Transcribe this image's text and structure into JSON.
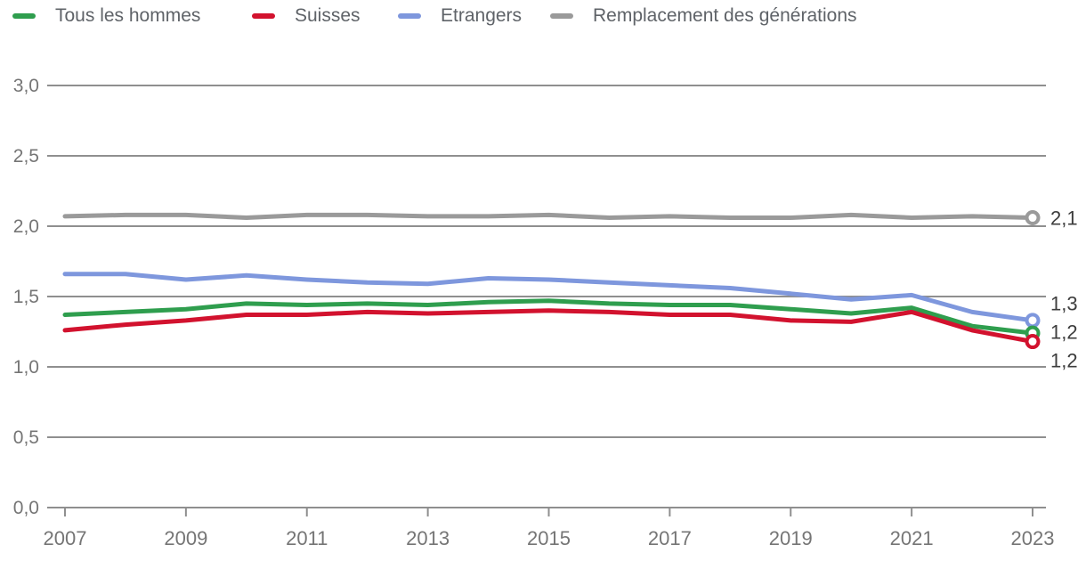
{
  "legend": {
    "items": [
      {
        "label": "Tous les hommes",
        "color": "#2f9e4e"
      },
      {
        "label": "Suisses",
        "color": "#d2122e"
      },
      {
        "label": "Etrangers",
        "color": "#7e97dd"
      },
      {
        "label": "Remplacement des générations",
        "color": "#9a9a9a"
      }
    ]
  },
  "chart_data": {
    "type": "line",
    "title": "",
    "xlabel": "",
    "ylabel": "",
    "x": [
      2007,
      2008,
      2009,
      2010,
      2011,
      2012,
      2013,
      2014,
      2015,
      2016,
      2017,
      2018,
      2019,
      2020,
      2021,
      2022,
      2023
    ],
    "x_tick_labels": [
      "2007",
      "2009",
      "2011",
      "2013",
      "2015",
      "2017",
      "2019",
      "2021",
      "2023"
    ],
    "y_ticks": [
      0.0,
      0.5,
      1.0,
      1.5,
      2.0,
      2.5,
      3.0
    ],
    "y_tick_labels": [
      "0,0",
      "0,5",
      "1,0",
      "1,5",
      "2,0",
      "2,5",
      "3,0"
    ],
    "ylim": [
      0.0,
      3.0
    ],
    "grid": true,
    "legend_position": "top",
    "end_markers": "open-circle",
    "series": [
      {
        "name": "Tous les hommes",
        "color": "#2f9e4e",
        "end_label": "1,2",
        "values": [
          1.37,
          1.39,
          1.41,
          1.45,
          1.44,
          1.45,
          1.44,
          1.46,
          1.47,
          1.45,
          1.44,
          1.44,
          1.41,
          1.38,
          1.42,
          1.29,
          1.24
        ]
      },
      {
        "name": "Suisses",
        "color": "#d2122e",
        "end_label": "1,2",
        "values": [
          1.26,
          1.3,
          1.33,
          1.37,
          1.37,
          1.39,
          1.38,
          1.39,
          1.4,
          1.39,
          1.37,
          1.37,
          1.33,
          1.32,
          1.39,
          1.26,
          1.18
        ]
      },
      {
        "name": "Etrangers",
        "color": "#7e97dd",
        "end_label": "1,3",
        "values": [
          1.66,
          1.66,
          1.62,
          1.65,
          1.62,
          1.6,
          1.59,
          1.63,
          1.62,
          1.6,
          1.58,
          1.56,
          1.52,
          1.48,
          1.51,
          1.39,
          1.33
        ]
      },
      {
        "name": "Remplacement des générations",
        "color": "#9a9a9a",
        "end_label": "2,1",
        "values": [
          2.07,
          2.08,
          2.08,
          2.06,
          2.08,
          2.08,
          2.07,
          2.07,
          2.08,
          2.06,
          2.07,
          2.06,
          2.06,
          2.08,
          2.06,
          2.07,
          2.06
        ]
      }
    ]
  },
  "colors": {
    "grid": "#8f8f8f",
    "axis_line": "#8f8f8f",
    "axis_text": "#757575",
    "value_label": "#3d3d3d",
    "background": "#ffffff"
  }
}
